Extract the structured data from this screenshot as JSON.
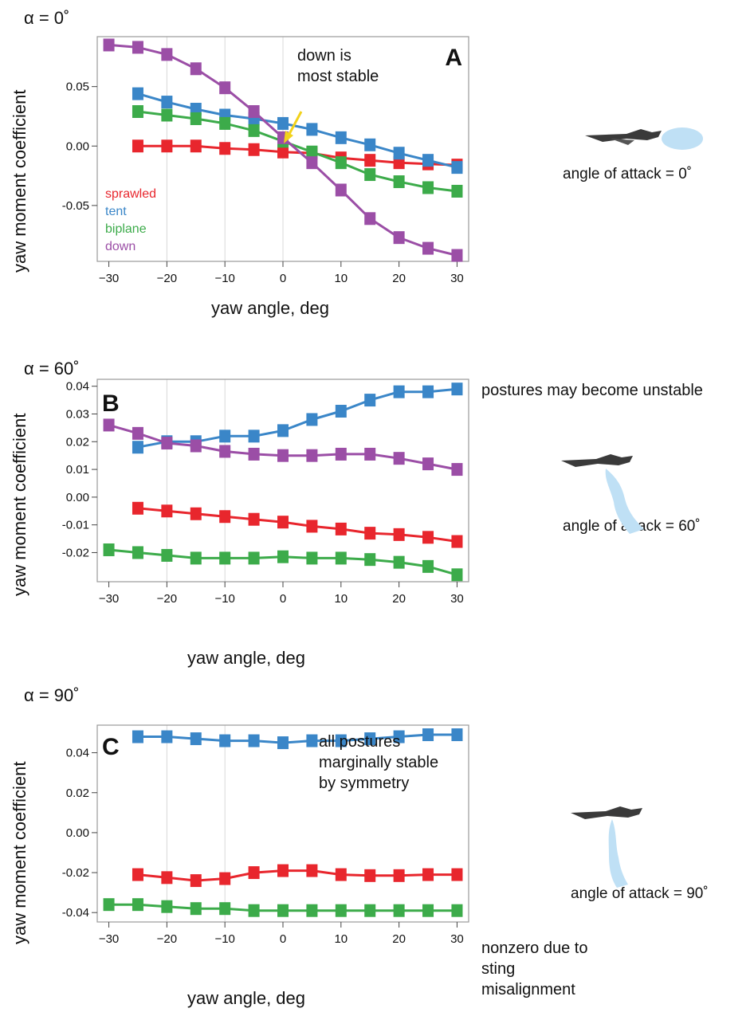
{
  "figure": {
    "panels": [
      {
        "label": "A",
        "alpha_title": "α = 0˚",
        "aoa_caption": "angle of attack = 0˚",
        "side_note": "",
        "inline_note": "down is\nmost stable",
        "bottom_note": "",
        "legend": [
          "sprawled",
          "tent",
          "biplane",
          "down"
        ]
      },
      {
        "label": "B",
        "alpha_title": "α = 60˚",
        "aoa_caption": "angle of attack = 60˚",
        "side_note": "postures may become unstable",
        "inline_note": "",
        "bottom_note": "",
        "legend": []
      },
      {
        "label": "C",
        "alpha_title": "α = 90˚",
        "aoa_caption": "angle of attack = 90˚",
        "side_note": "",
        "inline_note": "all postures\nmarginally stable\nby symmetry",
        "bottom_note": "nonzero due to\nsting\nmisalignment",
        "legend": []
      }
    ]
  },
  "colors": {
    "sprawled": "#e8262d",
    "tent": "#3a86c8",
    "biplane": "#3cab4a",
    "down": "#9b4ea6",
    "arrow": "#f2d21b",
    "wake": "#bfe0f5"
  },
  "icons": [
    "gecko-glider-icon",
    "airflow-wake-icon"
  ],
  "chart_data": [
    {
      "type": "line",
      "title": "α = 0˚",
      "panel_label": "A",
      "xlabel": "yaw angle, deg",
      "ylabel": "yaw moment coefficient",
      "xlim": [
        -32,
        32
      ],
      "ylim": [
        -0.097,
        0.092
      ],
      "xticks": [
        -30,
        -20,
        -10,
        0,
        10,
        20,
        30
      ],
      "yticks": [
        0.05,
        0.0,
        -0.05
      ],
      "ytick_labels": [
        "0.05",
        "0.00",
        "-0.05"
      ],
      "grid": "vertical lines at x = -20, -10, 0",
      "legend_position": "bottom-left",
      "annotations": [
        "down is\nmost stable"
      ],
      "series": [
        {
          "name": "sprawled",
          "x": [
            -25,
            -20,
            -15,
            -10,
            -5,
            0,
            5,
            10,
            15,
            20,
            25,
            30
          ],
          "values": [
            0.0,
            0.0,
            0.0,
            -0.002,
            -0.003,
            -0.005,
            -0.006,
            -0.01,
            -0.012,
            -0.014,
            -0.015,
            -0.016
          ]
        },
        {
          "name": "tent",
          "x": [
            -25,
            -20,
            -15,
            -10,
            -5,
            0,
            5,
            10,
            15,
            20,
            25,
            30
          ],
          "values": [
            0.044,
            0.037,
            0.031,
            0.026,
            0.023,
            0.019,
            0.014,
            0.007,
            0.001,
            -0.006,
            -0.012,
            -0.018
          ]
        },
        {
          "name": "biplane",
          "x": [
            -25,
            -20,
            -15,
            -10,
            -5,
            0,
            5,
            10,
            15,
            20,
            25,
            30
          ],
          "values": [
            0.029,
            0.026,
            0.023,
            0.019,
            0.013,
            0.004,
            -0.005,
            -0.014,
            -0.024,
            -0.03,
            -0.035,
            -0.038
          ]
        },
        {
          "name": "down",
          "x": [
            -30,
            -25,
            -20,
            -15,
            -10,
            -5,
            0,
            5,
            10,
            15,
            20,
            25,
            30
          ],
          "values": [
            0.085,
            0.083,
            0.077,
            0.065,
            0.049,
            0.029,
            0.007,
            -0.014,
            -0.037,
            -0.061,
            -0.077,
            -0.086,
            -0.092
          ]
        }
      ]
    },
    {
      "type": "line",
      "title": "α = 60˚",
      "panel_label": "B",
      "xlabel": "yaw angle, deg",
      "ylabel": "yaw moment coefficient",
      "xlim": [
        -32,
        32
      ],
      "ylim": [
        -0.0305,
        0.0425
      ],
      "xticks": [
        -30,
        -20,
        -10,
        0,
        10,
        20,
        30
      ],
      "yticks": [
        0.04,
        0.03,
        0.02,
        0.01,
        0.0,
        -0.01,
        -0.02
      ],
      "ytick_labels": [
        "0.04",
        "0.03",
        "0.02",
        "0.01",
        "0.00",
        "-0.01",
        "-0.02"
      ],
      "grid": "vertical lines at x = -20, -10",
      "annotations": [
        "postures may become unstable"
      ],
      "series": [
        {
          "name": "sprawled",
          "x": [
            -25,
            -20,
            -15,
            -10,
            -5,
            0,
            5,
            10,
            15,
            20,
            25,
            30
          ],
          "values": [
            -0.004,
            -0.005,
            -0.006,
            -0.007,
            -0.008,
            -0.009,
            -0.0105,
            -0.0115,
            -0.013,
            -0.0135,
            -0.0145,
            -0.016
          ]
        },
        {
          "name": "tent",
          "x": [
            -25,
            -20,
            -15,
            -10,
            -5,
            0,
            5,
            10,
            15,
            20,
            25,
            30
          ],
          "values": [
            0.018,
            0.02,
            0.02,
            0.022,
            0.022,
            0.024,
            0.028,
            0.031,
            0.035,
            0.038,
            0.038,
            0.039
          ]
        },
        {
          "name": "biplane",
          "x": [
            -30,
            -25,
            -20,
            -15,
            -10,
            -5,
            0,
            5,
            10,
            15,
            20,
            25,
            30
          ],
          "values": [
            -0.019,
            -0.02,
            -0.021,
            -0.022,
            -0.022,
            -0.022,
            -0.0215,
            -0.022,
            -0.022,
            -0.0225,
            -0.0235,
            -0.025,
            -0.028
          ]
        },
        {
          "name": "down",
          "x": [
            -30,
            -25,
            -20,
            -15,
            -10,
            -5,
            0,
            5,
            10,
            15,
            20,
            25,
            30
          ],
          "values": [
            0.026,
            0.023,
            0.0195,
            0.0185,
            0.0165,
            0.0155,
            0.015,
            0.015,
            0.0155,
            0.0155,
            0.014,
            0.012,
            0.01
          ]
        }
      ]
    },
    {
      "type": "line",
      "title": "α = 90˚",
      "panel_label": "C",
      "xlabel": "yaw angle, deg",
      "ylabel": "yaw moment coefficient",
      "xlim": [
        -32,
        32
      ],
      "ylim": [
        -0.0447,
        0.0538
      ],
      "xticks": [
        -30,
        -20,
        -10,
        0,
        10,
        20,
        30
      ],
      "yticks": [
        0.04,
        0.02,
        0.0,
        -0.02,
        -0.04
      ],
      "ytick_labels": [
        "0.04",
        "0.02",
        "0.00",
        "-0.02",
        "-0.04"
      ],
      "grid": "vertical lines at x = -20, -10",
      "annotations": [
        "all postures\nmarginally stable\nby symmetry",
        "nonzero due to\nsting\nmisalignment"
      ],
      "series": [
        {
          "name": "sprawled",
          "x": [
            -25,
            -20,
            -15,
            -10,
            -5,
            0,
            5,
            10,
            15,
            20,
            25,
            30
          ],
          "values": [
            -0.021,
            -0.0225,
            -0.024,
            -0.023,
            -0.02,
            -0.019,
            -0.019,
            -0.021,
            -0.0215,
            -0.0215,
            -0.021,
            -0.021
          ]
        },
        {
          "name": "tent",
          "x": [
            -25,
            -20,
            -15,
            -10,
            -5,
            0,
            5,
            10,
            15,
            20,
            25,
            30
          ],
          "values": [
            0.048,
            0.048,
            0.047,
            0.046,
            0.046,
            0.045,
            0.046,
            0.046,
            0.047,
            0.048,
            0.049,
            0.049
          ]
        },
        {
          "name": "biplane",
          "x": [
            -30,
            -25,
            -20,
            -15,
            -10,
            -5,
            0,
            5,
            10,
            15,
            20,
            25,
            30
          ],
          "values": [
            -0.036,
            -0.036,
            -0.037,
            -0.038,
            -0.038,
            -0.039,
            -0.039,
            -0.039,
            -0.039,
            -0.039,
            -0.039,
            -0.039,
            -0.039
          ]
        }
      ]
    }
  ]
}
